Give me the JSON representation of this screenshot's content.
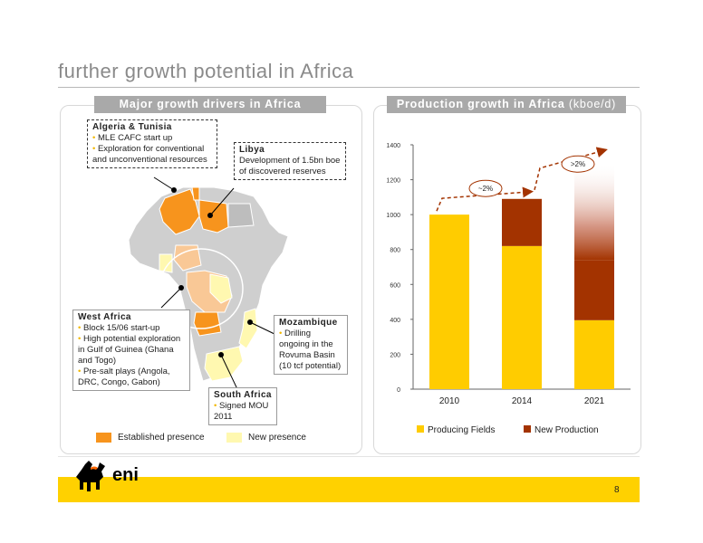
{
  "title": "further growth potential in Africa",
  "left_panel": {
    "header": "Major growth drivers in Africa",
    "callouts": {
      "algeria": {
        "heading": "Algeria & Tunisia",
        "items": [
          "MLE CAFC start up",
          "Exploration for conventional and unconventional resources"
        ]
      },
      "libya": {
        "heading": "Libya",
        "text": "Development of 1.5bn boe of discovered reserves"
      },
      "west_africa": {
        "heading": "West Africa",
        "items": [
          "Block 15/06 start-up",
          "High potential exploration in Gulf of Guinea (Ghana and Togo)",
          "Pre-salt plays (Angola, DRC, Congo, Gabon)"
        ]
      },
      "mozambique": {
        "heading": "Mozambique",
        "items": [
          "Drilling ongoing in the Rovuma Basin (10 tcf potential)"
        ]
      },
      "south_africa": {
        "heading": "South Africa",
        "items": [
          "Signed MOU 2011"
        ]
      }
    },
    "legend": {
      "established": "Established presence",
      "new": "New presence"
    },
    "colors": {
      "established": "#f7941d",
      "new": "#fff8b0",
      "map_grey": "#c8c8c8"
    }
  },
  "right_panel": {
    "header": "Production growth in Africa",
    "header_unit": "(kboe/d)"
  },
  "chart_data": {
    "type": "bar",
    "stacked": true,
    "categories": [
      "2010",
      "2014",
      "2021"
    ],
    "ylim": [
      0,
      1400
    ],
    "yticks": [
      0,
      200,
      400,
      600,
      800,
      1000,
      1200,
      1400
    ],
    "series": [
      {
        "name": "Producing Fields",
        "color": "#ffcc00",
        "values": [
          1000,
          820,
          395
        ]
      },
      {
        "name": "New Production",
        "color": "#a33300",
        "values": [
          0,
          270,
          345
        ]
      }
    ],
    "annotations": [
      "~2%",
      ">2%"
    ],
    "legend_position": "bottom",
    "grid": false
  },
  "footer": {
    "page_number": "8",
    "logo_text": "eni",
    "band_color": "#ffd100"
  }
}
